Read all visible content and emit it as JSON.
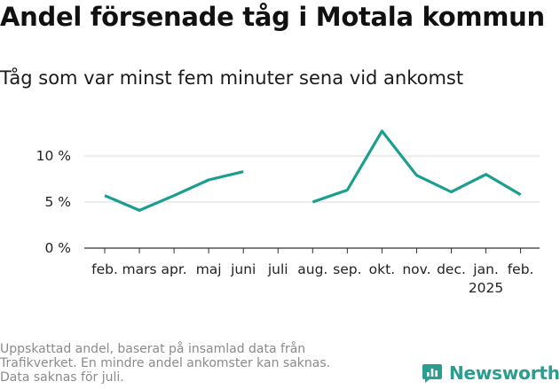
{
  "title": "Andel försenade tåg i Motala kommun",
  "subtitle": "Tåg som var minst fem minuter sena vid ankomst",
  "footnote": [
    "Uppskattad andel, baserat på insamlad data från",
    "Trafikverket. En mindre andel ankomster kan saknas.",
    "Data saknas för juli."
  ],
  "brand": {
    "name": "Newsworthy",
    "icon": "newsworthy-logo-icon",
    "color": "#2a9d8f"
  },
  "chart_data": {
    "type": "line",
    "categories": [
      "feb.",
      "mars",
      "apr.",
      "maj",
      "juni",
      "juli",
      "aug.",
      "sep.",
      "okt.",
      "nov.",
      "dec.",
      "jan.",
      "feb."
    ],
    "year_label": {
      "category_index": 11,
      "text": "2025"
    },
    "series": [
      {
        "color": "#1a9e8f",
        "values": [
          5.7,
          4.1,
          5.7,
          7.4,
          8.3,
          null,
          5.0,
          6.3,
          12.7,
          7.9,
          6.1,
          8.0,
          5.8
        ]
      }
    ],
    "yticks": [
      0,
      5,
      10
    ],
    "ytick_labels": [
      "0 %",
      "5 %",
      "10 %"
    ],
    "ylim": [
      0,
      13.5
    ],
    "grid": true
  }
}
